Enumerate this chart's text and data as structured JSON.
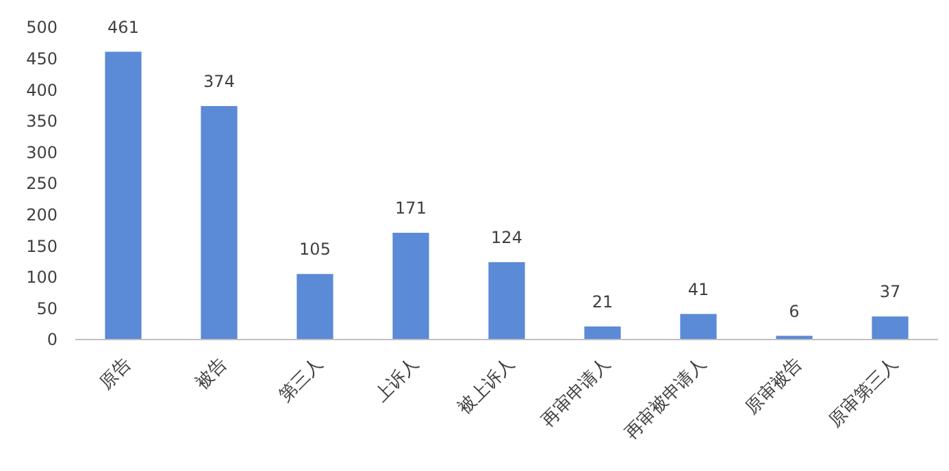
{
  "chart_data": {
    "type": "bar",
    "categories": [
      "原告",
      "被告",
      "第三人",
      "上诉人",
      "被上诉人",
      "再审申请人",
      "再审被申请人",
      "原审被告",
      "原审第三人"
    ],
    "values": [
      461,
      374,
      105,
      171,
      124,
      21,
      41,
      6,
      37
    ],
    "color": "#5b8ad6",
    "ylim": [
      0,
      500
    ],
    "yticks": [
      0,
      50,
      100,
      150,
      200,
      250,
      300,
      350,
      400,
      450,
      500
    ],
    "grid": false,
    "data_labels": true
  }
}
